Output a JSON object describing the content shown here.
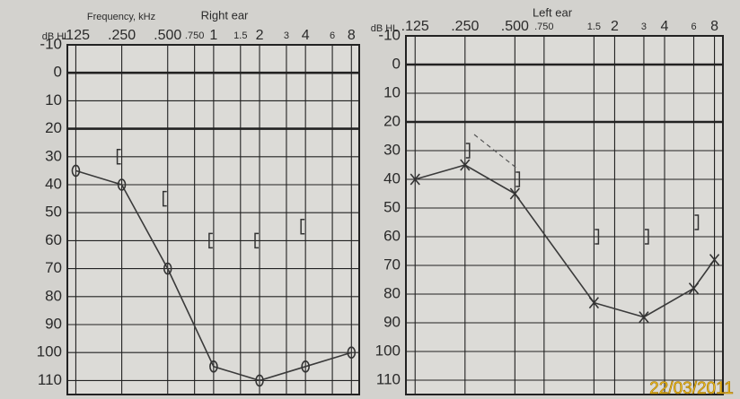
{
  "chart_data": [
    {
      "type": "line",
      "title": "Right ear",
      "xlabel": "Frequency, kHz",
      "ylabel": "dB HL",
      "log_x": true,
      "grid": true,
      "xlim": [
        0.11,
        9
      ],
      "ylim": [
        -10,
        115
      ],
      "y_reversed": true,
      "bold_yticks": [
        0,
        20
      ],
      "xticks": [
        {
          "value": 0.125,
          "label": ".125"
        },
        {
          "value": 0.25,
          "label": ".250"
        },
        {
          "value": 0.5,
          "label": ".500"
        },
        {
          "value": 0.75,
          "label": ".750"
        },
        1,
        1.5,
        2,
        3,
        4,
        6,
        8
      ],
      "yticks": [
        -10,
        0,
        10,
        20,
        30,
        40,
        50,
        60,
        70,
        80,
        90,
        100,
        110
      ],
      "series": [
        {
          "marker": "circle",
          "line": true,
          "color": "#3a3a3a",
          "x": [
            0.125,
            0.25,
            0.5,
            1,
            2,
            4,
            8
          ],
          "values": [
            35,
            40,
            70,
            105,
            110,
            105,
            100
          ]
        },
        {
          "marker": "bracket-left",
          "line": false,
          "color": "#3a3a3a",
          "x": [
            0.25,
            0.5,
            1,
            2,
            4
          ],
          "values": [
            30,
            45,
            60,
            60,
            55
          ]
        }
      ]
    },
    {
      "type": "line",
      "title": "Left ear",
      "ylabel": "dB HL",
      "log_x": true,
      "grid": true,
      "xlim": [
        0.11,
        9
      ],
      "ylim": [
        -10,
        115
      ],
      "y_reversed": true,
      "bold_yticks": [
        0,
        20
      ],
      "xticks": [
        {
          "value": 0.125,
          "label": ".125"
        },
        {
          "value": 0.25,
          "label": ".250"
        },
        {
          "value": 0.5,
          "label": ".500"
        },
        {
          "value": 0.75,
          "label": ".750"
        },
        1.5,
        2,
        3,
        4,
        6,
        8
      ],
      "yticks": [
        -10,
        0,
        10,
        20,
        30,
        40,
        50,
        60,
        70,
        80,
        90,
        100,
        110
      ],
      "series": [
        {
          "marker": "cross",
          "line": true,
          "color": "#3a3a3a",
          "x": [
            0.125,
            0.25,
            0.5,
            1.5,
            3,
            6,
            8
          ],
          "values": [
            40,
            35,
            45,
            83,
            88,
            78,
            68
          ]
        },
        {
          "marker": "bracket-right",
          "line": false,
          "color": "#3a3a3a",
          "x": [
            0.25,
            0.5,
            1.5,
            3,
            6
          ],
          "values": [
            30,
            40,
            60,
            60,
            55
          ]
        }
      ]
    }
  ],
  "photo_date": "22/03/2011"
}
